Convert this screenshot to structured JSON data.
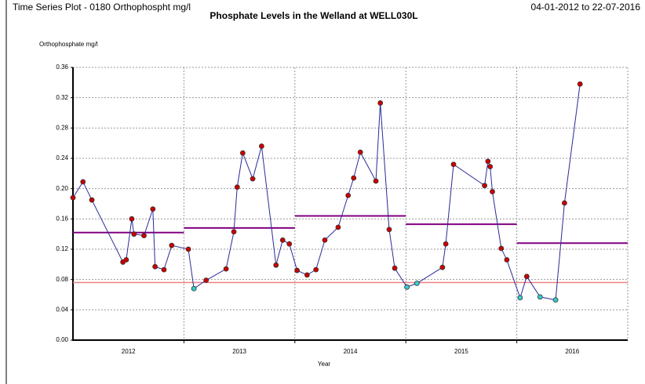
{
  "chart_data": {
    "type": "line",
    "header": "Time Series Plot - 0180 Orthophospht   mg/l",
    "title": "Phosphate Levels in the Welland at WELL030L",
    "date_range": "04-01-2012 to 22-07-2016",
    "ylabel": "Orthophosphate   mg/l",
    "xlabel": "Year",
    "xlim": [
      2012,
      2017
    ],
    "xgrid": [
      2013,
      2014,
      2015,
      2016
    ],
    "xticks": [
      {
        "value": 2012.5,
        "label": "2012"
      },
      {
        "value": 2013.5,
        "label": "2013"
      },
      {
        "value": 2014.5,
        "label": "2014"
      },
      {
        "value": 2015.5,
        "label": "2015"
      },
      {
        "value": 2016.5,
        "label": "2016"
      }
    ],
    "ylim": [
      0,
      0.36
    ],
    "yticks": [
      {
        "value": 0,
        "label": "0.00"
      },
      0.04,
      0.08,
      0.12,
      0.16,
      {
        "value": 0.2,
        "label": "0.20"
      },
      0.24,
      0.28,
      0.32,
      0.36
    ],
    "grid": true,
    "line_color": "#2a2a9a",
    "color": "#cc0000",
    "below_color": "#33cccc",
    "threshold": {
      "value": 0.076,
      "color": "#f08080"
    },
    "annual_means": {
      "color": "#800080",
      "values": [
        0.142,
        0.148,
        0.164,
        0.153,
        0.128
      ]
    },
    "x": [
      2012.0,
      2012.09,
      2012.17,
      2012.45,
      2012.48,
      2012.53,
      2012.55,
      2012.64,
      2012.72,
      2012.74,
      2012.82,
      2012.89,
      2013.04,
      2013.09,
      2013.2,
      2013.38,
      2013.45,
      2013.48,
      2013.53,
      2013.62,
      2013.7,
      2013.83,
      2013.89,
      2013.95,
      2014.02,
      2014.11,
      2014.19,
      2014.27,
      2014.39,
      2014.48,
      2014.53,
      2014.59,
      2014.73,
      2014.77,
      2014.85,
      2014.9,
      2015.01,
      2015.1,
      2015.33,
      2015.36,
      2015.43,
      2015.71,
      2015.74,
      2015.76,
      2015.78,
      2015.86,
      2015.91,
      2016.03,
      2016.09,
      2016.21,
      2016.35,
      2016.43,
      2016.57
    ],
    "values": [
      0.188,
      0.209,
      0.185,
      0.103,
      0.106,
      0.16,
      0.14,
      0.138,
      0.173,
      0.097,
      0.093,
      0.125,
      0.12,
      0.068,
      0.079,
      0.094,
      0.143,
      0.202,
      0.247,
      0.213,
      0.256,
      0.099,
      0.132,
      0.127,
      0.092,
      0.086,
      0.093,
      0.132,
      0.149,
      0.191,
      0.214,
      0.248,
      0.21,
      0.313,
      0.146,
      0.095,
      0.07,
      0.075,
      0.096,
      0.127,
      0.232,
      0.204,
      0.236,
      0.229,
      0.196,
      0.121,
      0.106,
      0.056,
      0.084,
      0.057,
      0.053,
      0.181,
      0.338
    ]
  }
}
